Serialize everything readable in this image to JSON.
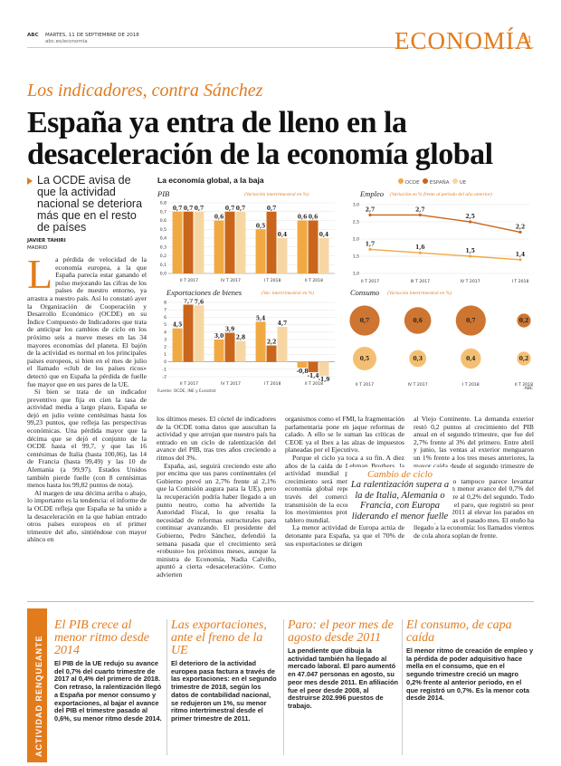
{
  "header": {
    "paper": "ABC",
    "date": "MARTES, 11 DE SEPTIEMBRE DE 2018",
    "web": "abc.es/economia",
    "section": "ECONOMÍA",
    "page": "51"
  },
  "article": {
    "kicker": "Los indicadores, contra Sánchez",
    "headline_line1": "España ya entra de lleno en la",
    "headline_line2": "desaceleración de la economía global",
    "summary": "La OCDE avisa de que la actividad nacional se deteriora más que en el resto de países",
    "author": "JAVIER TAHIRI",
    "location": "MADRID",
    "dropcap": "L",
    "col1_p1": "a pérdida de velocidad de la economía europea, a la que España parecía estar ganando el pulso mejorando las cifras de los países de nuestro entorno, ya arrastra a nuestro país. Así lo constató ayer la Organización de Cooperación y Desarrollo Económico (OCDE) en su Índice Compuesto de Indicadores que trata de anticipar los cambios de ciclo en los próximo seis a nueve meses en las 34 mayores economías del planeta. El bajón de la actividad es normal en los principales países europeos, si bien en el mes de julio el llamado «club de los países ricos» detectó que en España la pérdida de fuelle fue mayor que en sus pares de la UE.",
    "col1_p2": "Si bien se trata de un indicador preventivo que fija en cien la tasa de actividad media a largo plazo, España se dejó en julio veinte centésimas hasta los 99,23 puntos, que refleja las perspectivas económicas. Una pérdida mayor que la décima que se dejó el conjunto de la OCDE hasta el 99,7, y que las 16 centésimas de Italia (hasta 100,06), las 14 de Francia (hasta 99,49) y las 10 de Alemania (a 99,97). Estados Unidos también pierde fuelle (con 8 centésimas menos hasta los 99,82 puntos de nota).",
    "col1_p3": "Al margen de una décima arriba o abajo, lo importante es la tendencia: el informe de la OCDE refleja que España se ha unido a la desaceleración en la que habían entrado otros países europeos en el primer trimestre del año, sintiéndose con mayor ahínco en",
    "col2_p1": "los últimos meses. El cóctel de indicadores de la OCDE toma datos que auscultan la actividad y que arrojan que nuestro país ha entrado en un ciclo de ralentización del avance del PIB, tras tres años creciendo a ritmos del 3%.",
    "col2_p2": "España, así, seguirá creciendo este año por encima que sus pares continentales (el Gobierno prevé un 2,7% frente al 2,1% que la Comisión augura para la UE), pero la recuperación podría haber llegado a un punto neutro, como ha advertido la Autoridad Fiscal, lo que resalta la necesidad de reformas estructurales para continuar avanzando. El presidente del Gobierno, Pedro Sánchez, defendió la semana pasada que el crecimiento será «robusto» los próximos meses, aunque la ministra de Economía, Nadia Calviño, apuntó a cierta «desaceleración». Como advierten",
    "col3_p1": "organismos como el FMI, la fragmentación parlamentaria pone en jaque reformas de calado. A ello se le suman las críticas de CEOE ya el Ibex a las alzas de impuestos planeadas por el Ejecutivo.",
    "col3_p2": "Porque el ciclo ya toca a su fin. A diez años de la caída de Lehman Brothers, la actividad mundial pierde fuelle y el crecimiento será menor. El bajón de la economía global repercute en España a través del comercio, la correa de transmisión de la economía, agravada por los movimientos proteccionistas sobre el tablero mundial.",
    "col3_p3": "La menor actividad de Europa actúa de detonante para España, ya que el 70% de sus exportaciones se dirigen",
    "col4_p1": "al Viejo Continente. La demanda exterior restó 0,2 puntos al crecimiento del PIB anual en el segundo trimestre, que fue del 2,7% frente al 3% del primero. Entre abril y junio, las ventas al exterior menguaron un 1% frente a los tres meses anteriores, la mayor caída desde el segundo trimestre de 2011.",
    "col4_p2": "El consumo tampoco parece levantar cabeza, con un menor avance del 0,7% del primer trimestre al 0,2% del segundo. Todo ello incide en el paro, que registró su peor agosto desde 2011 al elevar los parados en 47.047 personas el pasado mes. El otoño ha llegado a la economía: los llamados vientos de cola ahora soplan de frente.",
    "pull_title": "Cambio de ciclo",
    "pull_text": "La ralentización supera a la de Italia, Alemania o Francia, con Europa liderando el menor fuelle"
  },
  "chart_data": [
    {
      "type": "bar",
      "title": "La economía global, a la baja",
      "subtitle": "PIB",
      "note": "(Variación intertrimestral en %)",
      "categories": [
        "II T 2017",
        "IV T 2017",
        "I T 2018",
        "II T 2018"
      ],
      "series": [
        {
          "name": "OCDE",
          "values": [
            0.7,
            0.6,
            0.5,
            0.6
          ]
        },
        {
          "name": "ESPAÑA",
          "values": [
            0.7,
            0.7,
            0.7,
            0.6
          ]
        },
        {
          "name": "UE",
          "values": [
            0.7,
            0.7,
            0.4,
            0.4
          ]
        }
      ],
      "ylim": [
        0,
        0.8
      ],
      "yticks": [
        "0,8",
        "0,7",
        "0,6",
        "0,5",
        "0,4",
        "0,3",
        "0,2",
        "0,1",
        "0,0"
      ]
    },
    {
      "type": "bar",
      "subtitle": "Exportaciones de bienes",
      "note": "(Var. intertrimestral en %)",
      "categories": [
        "II T 2017",
        "IV T 2017",
        "I T 2018",
        "II T 2018"
      ],
      "series": [
        {
          "name": "OCDE",
          "values": [
            4.5,
            3.0,
            5.4,
            -0.8
          ]
        },
        {
          "name": "ESPAÑA",
          "values": [
            7.7,
            3.9,
            2.2,
            -1.4
          ]
        },
        {
          "name": "UE",
          "values": [
            7.6,
            2.8,
            4.7,
            -1.9
          ]
        }
      ],
      "labels": [
        [
          "4,5",
          "7,7",
          "7,6"
        ],
        [
          "3,0",
          "3,9",
          "2,8"
        ],
        [
          "5,4",
          "2,2",
          "4,7"
        ],
        [
          "-0,8",
          "-1,4",
          "-1,9"
        ]
      ],
      "ylim": [
        -2,
        8
      ],
      "yticks": [
        "8",
        "7",
        "6",
        "5",
        "4",
        "3",
        "2",
        "1",
        "0",
        "-1",
        "-2"
      ],
      "source": "Fuente: OCDE, INE y Eurostat"
    },
    {
      "type": "line",
      "subtitle": "Empleo",
      "note": "(Variación en % frente al periodo del año anterior)",
      "categories": [
        "II T 2017",
        "III T 2017",
        "IV T 2017",
        "I T 2018"
      ],
      "series": [
        {
          "name": "ESPAÑA",
          "values": [
            2.7,
            2.7,
            2.5,
            2.2
          ],
          "labels": [
            "2,7",
            "2,7",
            "2,5",
            "2,2"
          ]
        },
        {
          "name": "OCDE",
          "values": [
            1.7,
            1.6,
            1.5,
            1.4
          ],
          "labels": [
            "1,7",
            "1,6",
            "1,5",
            "1,4"
          ]
        }
      ],
      "ylim": [
        1.0,
        3.0
      ],
      "yticks": [
        "3,0",
        "2,5",
        "2,0",
        "1,5",
        "1,0"
      ]
    },
    {
      "type": "bubble",
      "subtitle": "Consumo",
      "note": "(Variación intertrimestral en %)",
      "categories": [
        "II T 2017",
        "IV T 2017",
        "I T 2018",
        "II T 2018"
      ],
      "series": [
        {
          "name": "ESPAÑA",
          "values": [
            0.7,
            0.6,
            0.7,
            0.2
          ],
          "labels": [
            "0,7",
            "0,6",
            "0,7",
            "0,2"
          ]
        },
        {
          "name": "UE",
          "values": [
            0.5,
            0.3,
            0.4,
            0.2
          ],
          "labels": [
            "0,5",
            "0,3",
            "0,4",
            "0,2"
          ]
        }
      ],
      "credit": "ABC"
    }
  ],
  "legend": [
    "OCDE",
    "ESPAÑA",
    "UE"
  ],
  "colors": {
    "ocde": "#f1a944",
    "espana": "#c9661b",
    "ue": "#f6d7a3",
    "accent": "#e27b1c",
    "side": "#e27b1c"
  },
  "bottom": {
    "side_label": "ACTIVIDAD RENQUEANTE",
    "b1_title": "El PIB crece al menor ritmo desde 2014",
    "b1_text": "El PIB de la UE redujo su avance del 0,7% del cuarto trimestre de 2017 al 0,4% del primero de 2018. Con retraso, la ralentización llegó a España por menor consumo y exportaciones, al bajar el avance del PIB el trimestre pasado al 0,6%, su menor ritmo desde 2014.",
    "b2_title": "Las exportaciones, ante el freno de la UE",
    "b2_text": "El deterioro de la actividad europea pasa factura a través de las exportaciones: en el segundo trimestre de 2018, según los datos de contabilidad nacional, se redujeron un 1%, su menor ritmo intertrimestral desde el primer trimestre de 2011.",
    "b3_title": "Paro: el peor mes de agosto desde 2011",
    "b3_text": "La pendiente que dibuja la actividad también ha llegado al mercado laboral. El paro aumentó en 47.047 personas en agosto, su peor mes desde 2011. En afiliación fue el peor desde 2008, al destruirse 202.996 puestos de trabajo.",
    "b4_title": "El consumo, de capa caída",
    "b4_text": "El menor ritmo de creación de empleo y la pérdida de poder adquisitivo hace mella en el consumo, que en el segundo trimestre creció un magro 0,2% frente al anterior periodo, en el que registró un 0,7%. Es la menor cota desde 2014."
  }
}
